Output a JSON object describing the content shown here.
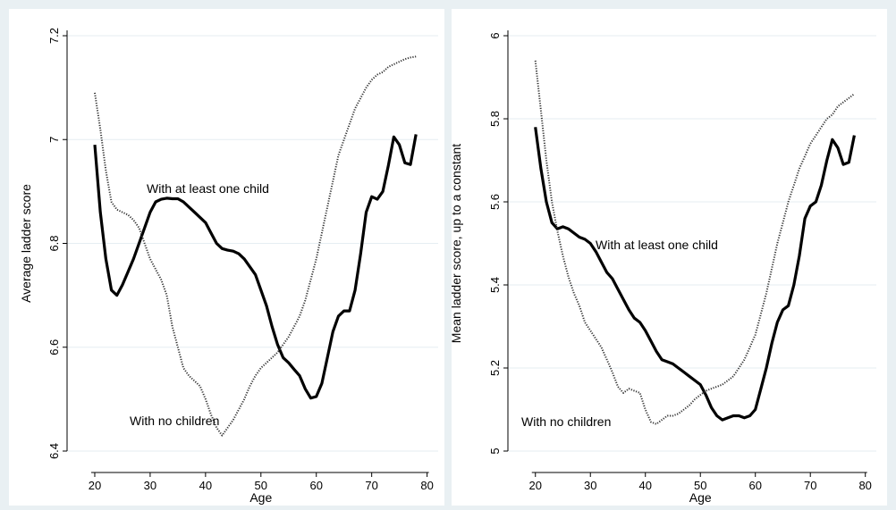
{
  "chart_data": [
    {
      "type": "line",
      "xlabel": "Age",
      "ylabel": "Average ladder score",
      "xlim": [
        15,
        82
      ],
      "ylim": [
        6.4,
        7.2
      ],
      "x_ticks": [
        20,
        30,
        40,
        50,
        60,
        70,
        80
      ],
      "y_ticks": [
        6.4,
        6.6,
        6.8,
        7,
        7.2
      ],
      "y_tick_labels": [
        "6.4",
        "6.6",
        "6.8",
        "7",
        "7.2"
      ],
      "grid": true,
      "series": [
        {
          "name": "With at least one child",
          "style": "solid",
          "x": [
            20,
            21,
            22,
            23,
            24,
            25,
            26,
            27,
            28,
            29,
            30,
            31,
            32,
            33,
            34,
            35,
            36,
            37,
            38,
            39,
            40,
            41,
            42,
            43,
            44,
            45,
            46,
            47,
            48,
            49,
            50,
            51,
            52,
            53,
            54,
            55,
            56,
            57,
            58,
            59,
            60,
            61,
            62,
            63,
            64,
            65,
            66,
            67,
            68,
            69,
            70,
            71,
            72,
            73,
            74,
            75,
            76,
            77,
            78
          ],
          "values": [
            6.99,
            6.86,
            6.77,
            6.71,
            6.7,
            6.72,
            6.745,
            6.77,
            6.8,
            6.83,
            6.86,
            6.88,
            6.885,
            6.887,
            6.886,
            6.886,
            6.88,
            6.87,
            6.86,
            6.85,
            6.84,
            6.82,
            6.8,
            6.79,
            6.787,
            6.785,
            6.78,
            6.77,
            6.755,
            6.74,
            6.71,
            6.68,
            6.64,
            6.605,
            6.58,
            6.57,
            6.557,
            6.545,
            6.52,
            6.502,
            6.505,
            6.53,
            6.58,
            6.63,
            6.66,
            6.67,
            6.67,
            6.71,
            6.78,
            6.86,
            6.89,
            6.885,
            6.9,
            6.95,
            7.005,
            6.99,
            6.955,
            6.952,
            7.01
          ]
        },
        {
          "name": "With no children",
          "style": "dotted",
          "x": [
            20,
            21,
            22,
            23,
            24,
            25,
            26,
            27,
            28,
            29,
            30,
            31,
            32,
            33,
            34,
            35,
            36,
            37,
            38,
            39,
            40,
            41,
            42,
            43,
            44,
            45,
            46,
            47,
            48,
            49,
            50,
            51,
            52,
            53,
            54,
            55,
            56,
            57,
            58,
            59,
            60,
            61,
            62,
            63,
            64,
            65,
            66,
            67,
            68,
            69,
            70,
            71,
            72,
            73,
            74,
            75,
            76,
            77,
            78
          ],
          "values": [
            7.09,
            7.02,
            6.94,
            6.88,
            6.865,
            6.86,
            6.855,
            6.845,
            6.83,
            6.8,
            6.77,
            6.75,
            6.73,
            6.7,
            6.64,
            6.6,
            6.56,
            6.545,
            6.535,
            6.525,
            6.5,
            6.47,
            6.445,
            6.43,
            6.445,
            6.46,
            6.48,
            6.5,
            6.525,
            6.545,
            6.56,
            6.57,
            6.58,
            6.59,
            6.605,
            6.62,
            6.64,
            6.66,
            6.69,
            6.73,
            6.77,
            6.82,
            6.87,
            6.92,
            6.97,
            7.0,
            7.03,
            7.06,
            7.08,
            7.1,
            7.115,
            7.125,
            7.13,
            7.14,
            7.145,
            7.15,
            7.155,
            7.158,
            7.16
          ]
        }
      ],
      "annotations": [
        "With at least one child",
        "With no children"
      ]
    },
    {
      "type": "line",
      "xlabel": "Age",
      "ylabel": "Mean ladder score, up to a constant",
      "xlim": [
        15,
        82
      ],
      "ylim": [
        5.0,
        6.0
      ],
      "x_ticks": [
        20,
        30,
        40,
        50,
        60,
        70,
        80
      ],
      "y_ticks": [
        5.0,
        5.2,
        5.4,
        5.6,
        5.8,
        6.0
      ],
      "y_tick_labels": [
        "5",
        "5.2",
        "5.4",
        "5.6",
        "5.8",
        "6"
      ],
      "grid": true,
      "series": [
        {
          "name": "With at least one child",
          "style": "solid",
          "x": [
            20,
            21,
            22,
            23,
            24,
            25,
            26,
            27,
            28,
            29,
            30,
            31,
            32,
            33,
            34,
            35,
            36,
            37,
            38,
            39,
            40,
            41,
            42,
            43,
            44,
            45,
            46,
            47,
            48,
            49,
            50,
            51,
            52,
            53,
            54,
            55,
            56,
            57,
            58,
            59,
            60,
            61,
            62,
            63,
            64,
            65,
            66,
            67,
            68,
            69,
            70,
            71,
            72,
            73,
            74,
            75,
            76,
            77,
            78
          ],
          "values": [
            5.78,
            5.68,
            5.6,
            5.55,
            5.535,
            5.54,
            5.535,
            5.525,
            5.515,
            5.51,
            5.5,
            5.48,
            5.455,
            5.43,
            5.415,
            5.39,
            5.365,
            5.34,
            5.32,
            5.31,
            5.29,
            5.265,
            5.24,
            5.22,
            5.215,
            5.21,
            5.2,
            5.19,
            5.18,
            5.17,
            5.16,
            5.135,
            5.105,
            5.085,
            5.075,
            5.08,
            5.085,
            5.085,
            5.08,
            5.085,
            5.1,
            5.15,
            5.2,
            5.26,
            5.31,
            5.34,
            5.35,
            5.4,
            5.47,
            5.56,
            5.59,
            5.6,
            5.64,
            5.7,
            5.75,
            5.73,
            5.69,
            5.695,
            5.76
          ]
        },
        {
          "name": "With no children",
          "style": "dotted",
          "x": [
            20,
            21,
            22,
            23,
            24,
            25,
            26,
            27,
            28,
            29,
            30,
            31,
            32,
            33,
            34,
            35,
            36,
            37,
            38,
            39,
            40,
            41,
            42,
            43,
            44,
            45,
            46,
            47,
            48,
            49,
            50,
            51,
            52,
            53,
            54,
            55,
            56,
            57,
            58,
            59,
            60,
            61,
            62,
            63,
            64,
            65,
            66,
            67,
            68,
            69,
            70,
            71,
            72,
            73,
            74,
            75,
            76,
            77,
            78
          ],
          "values": [
            5.94,
            5.82,
            5.7,
            5.6,
            5.53,
            5.47,
            5.42,
            5.38,
            5.35,
            5.31,
            5.29,
            5.27,
            5.25,
            5.22,
            5.19,
            5.155,
            5.14,
            5.15,
            5.145,
            5.14,
            5.1,
            5.07,
            5.065,
            5.075,
            5.085,
            5.085,
            5.09,
            5.1,
            5.11,
            5.125,
            5.135,
            5.145,
            5.15,
            5.155,
            5.16,
            5.17,
            5.18,
            5.2,
            5.22,
            5.25,
            5.28,
            5.33,
            5.38,
            5.44,
            5.5,
            5.55,
            5.6,
            5.64,
            5.68,
            5.71,
            5.74,
            5.76,
            5.78,
            5.8,
            5.81,
            5.83,
            5.84,
            5.85,
            5.86
          ]
        }
      ],
      "annotations": [
        "With at least one child",
        "With no children"
      ]
    }
  ],
  "colors": {
    "outer_background": "#e9f0f3",
    "plot_background": "#ffffff",
    "grid": "#e6eef2",
    "axis": "#000000",
    "solid_line": "#000000",
    "dotted_line": "#333333"
  }
}
